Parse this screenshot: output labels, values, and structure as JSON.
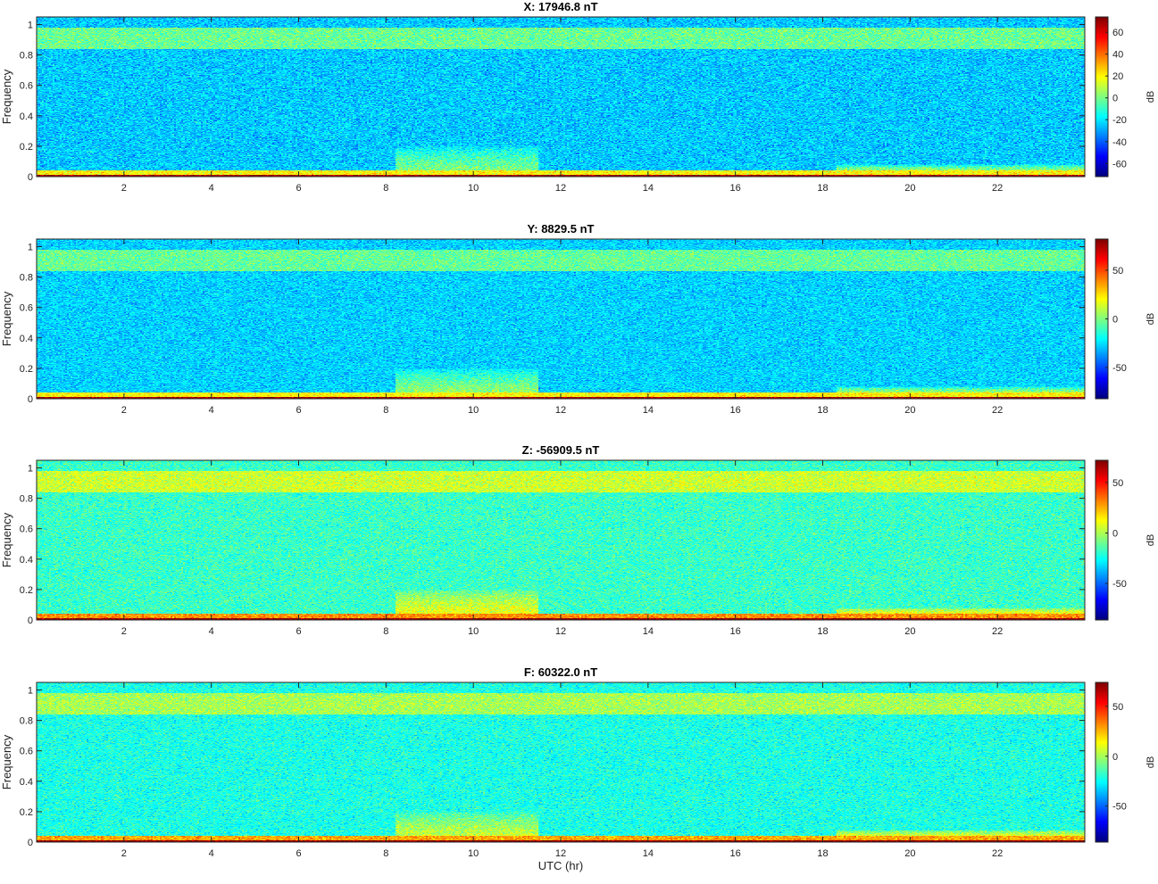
{
  "chart_data": [
    {
      "type": "heatmap",
      "title": "X: 17946.8 nT",
      "xlabel": "",
      "ylabel": "Frequency",
      "xlim": [
        0,
        24
      ],
      "ylim": [
        0,
        1.05
      ],
      "xticks": [
        2,
        4,
        6,
        8,
        10,
        12,
        14,
        16,
        18,
        20,
        22
      ],
      "yticks": [
        0,
        0.2,
        0.4,
        0.6,
        0.8,
        1
      ],
      "colorbar": {
        "label": "dB",
        "range": [
          -72,
          74
        ],
        "ticks": [
          -60,
          -40,
          -20,
          0,
          20,
          40,
          60
        ],
        "colormap": "jet"
      },
      "background_db": -25,
      "features": [
        {
          "desc": "low-frequency band",
          "f_range": [
            0,
            0.012
          ],
          "db": 68
        },
        {
          "desc": "near-DC band",
          "f_range": [
            0.012,
            0.04
          ],
          "db": 20
        },
        {
          "desc": "high-frequency band",
          "f_range": [
            0.84,
            0.98
          ],
          "db": -2
        },
        {
          "desc": "mid-day enhancement",
          "t_range": [
            8.2,
            11.5
          ],
          "f_range": [
            0,
            0.2
          ],
          "db": 5
        },
        {
          "desc": "evening enhancement",
          "t_range": [
            18.3,
            24
          ],
          "f_range": [
            0,
            0.08
          ],
          "db": 22
        }
      ]
    },
    {
      "type": "heatmap",
      "title": "Y: 8829.5 nT",
      "xlabel": "",
      "ylabel": "Frequency",
      "xlim": [
        0,
        24
      ],
      "ylim": [
        0,
        1.05
      ],
      "xticks": [
        2,
        4,
        6,
        8,
        10,
        12,
        14,
        16,
        18,
        20,
        22
      ],
      "yticks": [
        0,
        0.2,
        0.4,
        0.6,
        0.8,
        1
      ],
      "colorbar": {
        "label": "dB",
        "range": [
          -82,
          82
        ],
        "ticks": [
          -50,
          0,
          50
        ],
        "colormap": "jet"
      },
      "background_db": -28,
      "features": [
        {
          "desc": "low-frequency band",
          "f_range": [
            0,
            0.012
          ],
          "db": 76
        },
        {
          "desc": "near-DC band",
          "f_range": [
            0.012,
            0.04
          ],
          "db": 22
        },
        {
          "desc": "high-frequency band",
          "f_range": [
            0.84,
            0.98
          ],
          "db": -4
        },
        {
          "desc": "mid-day enhancement",
          "t_range": [
            8.2,
            11.5
          ],
          "f_range": [
            0,
            0.2
          ],
          "db": 8
        },
        {
          "desc": "evening enhancement",
          "t_range": [
            18.3,
            24
          ],
          "f_range": [
            0,
            0.08
          ],
          "db": 24
        }
      ]
    },
    {
      "type": "heatmap",
      "title": "Z: -56909.5 nT",
      "xlabel": "",
      "ylabel": "Frequency",
      "xlim": [
        0,
        24
      ],
      "ylim": [
        0,
        1.05
      ],
      "xticks": [
        2,
        4,
        6,
        8,
        10,
        12,
        14,
        16,
        18,
        20,
        22
      ],
      "yticks": [
        0,
        0.2,
        0.4,
        0.6,
        0.8,
        1
      ],
      "colorbar": {
        "label": "dB",
        "range": [
          -86,
          72
        ],
        "ticks": [
          -50,
          0,
          50
        ],
        "colormap": "jet"
      },
      "background_db": -18,
      "features": [
        {
          "desc": "low-frequency band",
          "f_range": [
            0,
            0.012
          ],
          "db": 68
        },
        {
          "desc": "near-DC band",
          "f_range": [
            0.012,
            0.04
          ],
          "db": 30
        },
        {
          "desc": "high-frequency band",
          "f_range": [
            0.84,
            0.98
          ],
          "db": 5
        },
        {
          "desc": "mid-day enhancement",
          "t_range": [
            8.2,
            11.5
          ],
          "f_range": [
            0,
            0.2
          ],
          "db": 15
        },
        {
          "desc": "evening enhancement",
          "t_range": [
            18.3,
            24
          ],
          "f_range": [
            0,
            0.08
          ],
          "db": 30
        }
      ]
    },
    {
      "type": "heatmap",
      "title": "F: 60322.0 nT",
      "xlabel": "UTC (hr)",
      "ylabel": "Frequency",
      "xlim": [
        0,
        24
      ],
      "ylim": [
        0,
        1.05
      ],
      "xticks": [
        2,
        4,
        6,
        8,
        10,
        12,
        14,
        16,
        18,
        20,
        22
      ],
      "yticks": [
        0,
        0.2,
        0.4,
        0.6,
        0.8,
        1
      ],
      "colorbar": {
        "label": "dB",
        "range": [
          -86,
          74
        ],
        "ticks": [
          -50,
          0,
          50
        ],
        "colormap": "jet"
      },
      "background_db": -22,
      "features": [
        {
          "desc": "low-frequency band",
          "f_range": [
            0,
            0.012
          ],
          "db": 70
        },
        {
          "desc": "near-DC band",
          "f_range": [
            0.012,
            0.04
          ],
          "db": 28
        },
        {
          "desc": "high-frequency band",
          "f_range": [
            0.84,
            0.98
          ],
          "db": 0
        },
        {
          "desc": "mid-day enhancement",
          "t_range": [
            8.2,
            11.5
          ],
          "f_range": [
            0,
            0.2
          ],
          "db": 10
        },
        {
          "desc": "evening enhancement",
          "t_range": [
            18.3,
            24
          ],
          "f_range": [
            0,
            0.08
          ],
          "db": 26
        }
      ]
    }
  ]
}
